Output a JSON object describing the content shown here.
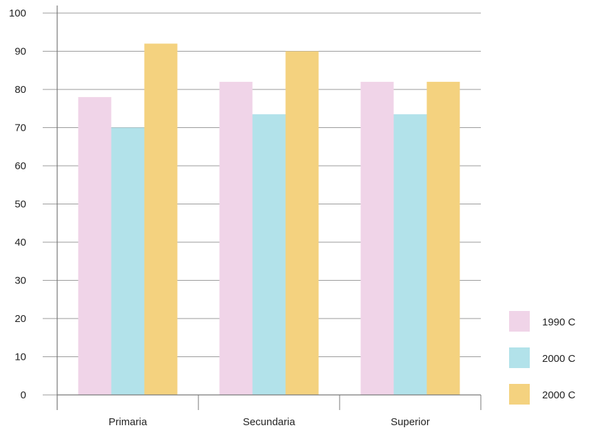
{
  "chart_data": {
    "type": "bar",
    "title": "",
    "xlabel": "",
    "ylabel": "",
    "ylim": [
      0,
      100
    ],
    "yticks": [
      0,
      10,
      20,
      30,
      40,
      50,
      60,
      70,
      80,
      90,
      100
    ],
    "grid": true,
    "legend_position": "bottom-right",
    "categories": [
      "Primaria",
      "Secundaria",
      "Superior"
    ],
    "series": [
      {
        "name": "1990 C",
        "color": "#f0d4e8",
        "values": [
          78,
          82,
          82
        ]
      },
      {
        "name": "2000 C",
        "color": "#b2e2ea",
        "values": [
          70,
          73.5,
          73.5
        ]
      },
      {
        "name": "2000 C",
        "color": "#f4d27f",
        "values": [
          92,
          90,
          82
        ]
      }
    ]
  }
}
